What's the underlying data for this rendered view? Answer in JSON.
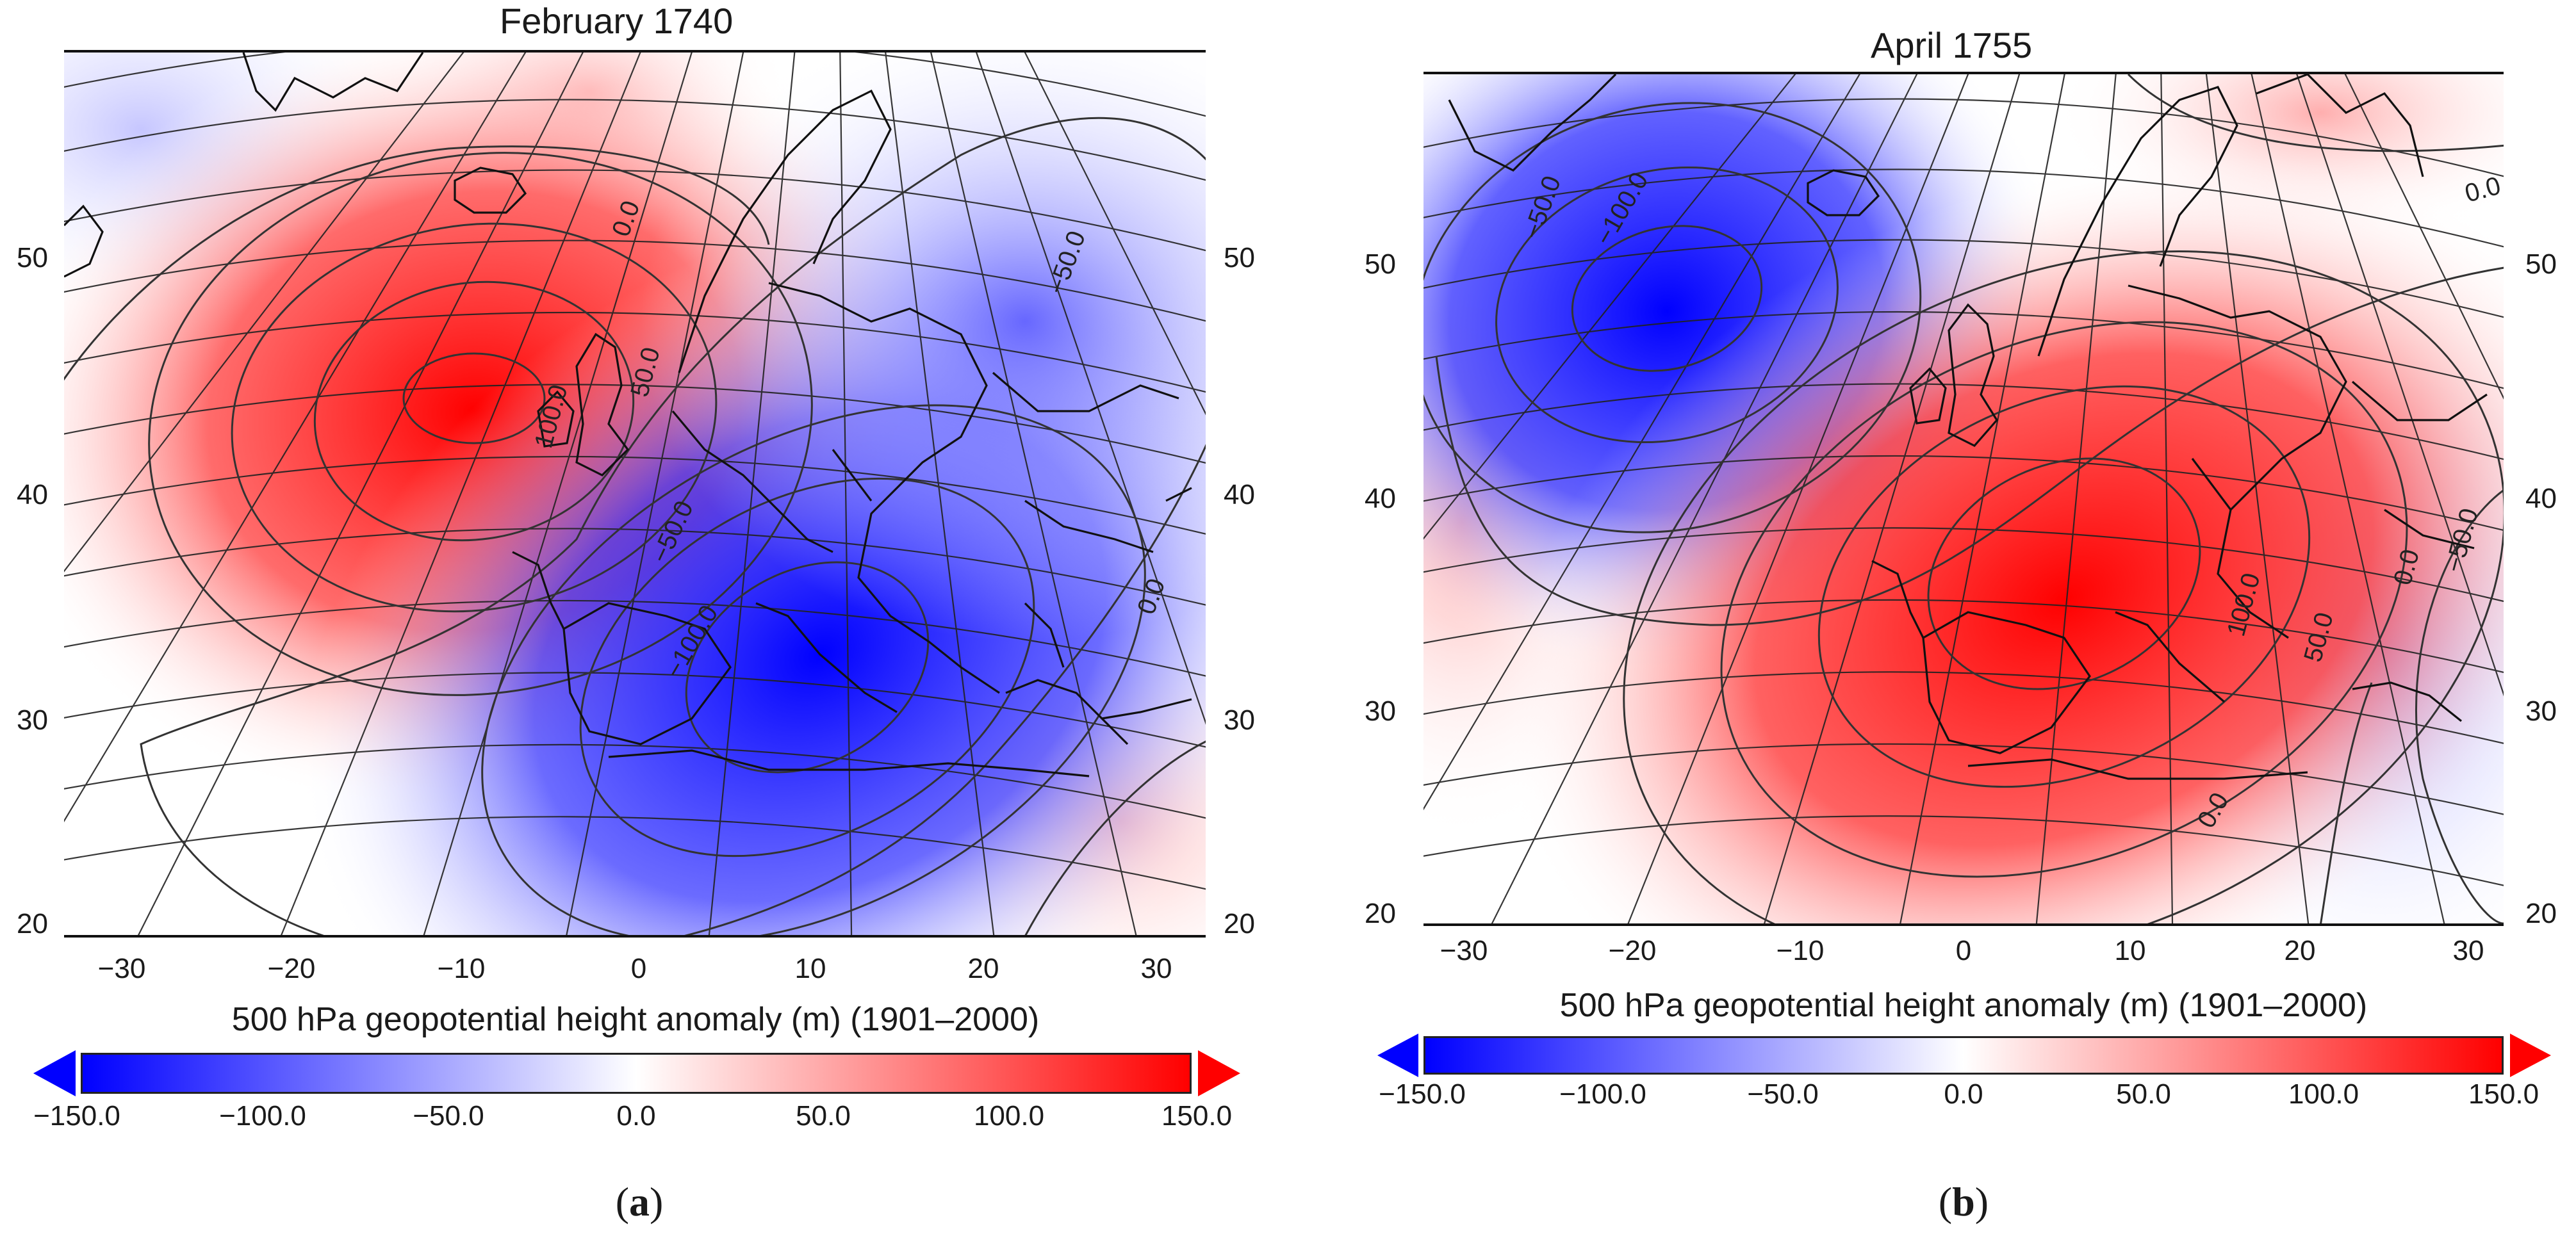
{
  "panels": [
    {
      "id": "a",
      "title": "February 1740",
      "caption_letter": "a",
      "lat_labels": [
        "50",
        "40",
        "30",
        "20"
      ],
      "lon_labels": [
        "−30",
        "−20",
        "−10",
        "0",
        "10",
        "20",
        "30"
      ],
      "contour_labels": [
        "100.0",
        "50.0",
        "0.0",
        "−50.0",
        "−100.0",
        "0.0",
        "−50.0"
      ],
      "anomaly_centers": [
        {
          "type": "high",
          "lon": -9,
          "lat": 45,
          "value": 120
        },
        {
          "type": "low",
          "lon": 10,
          "lat": 33,
          "value": -140
        },
        {
          "type": "low",
          "lon": 22,
          "lat": 48,
          "value": -60
        }
      ],
      "colorbar": {
        "title": "500 hPa geopotential height anomaly (m) (1901–2000)",
        "tick_labels": [
          "−150.0",
          "−100.0",
          "−50.0",
          "0.0",
          "50.0",
          "100.0",
          "150.0"
        ]
      }
    },
    {
      "id": "b",
      "title": "April 1755",
      "caption_letter": "b",
      "lat_labels": [
        "50",
        "40",
        "30",
        "20"
      ],
      "lon_labels": [
        "−30",
        "−20",
        "−10",
        "0",
        "10",
        "20",
        "30"
      ],
      "contour_labels": [
        "−50.0",
        "−100.0",
        "0.0",
        "100.0",
        "50.0",
        "0.0",
        "−50.0",
        "0.0"
      ],
      "anomaly_centers": [
        {
          "type": "low",
          "lon": -13,
          "lat": 47,
          "value": -140
        },
        {
          "type": "high",
          "lon": 7,
          "lat": 37,
          "value": 140
        },
        {
          "type": "high",
          "lon": 25,
          "lat": 58,
          "value": 40
        }
      ],
      "colorbar": {
        "title": "500 hPa geopotential height anomaly (m) (1901–2000)",
        "tick_labels": [
          "−150.0",
          "−100.0",
          "−50.0",
          "0.0",
          "50.0",
          "100.0",
          "150.0"
        ]
      }
    }
  ],
  "colors": {
    "low": "#0000ff",
    "neutral": "#ffffff",
    "high": "#ff0000",
    "lines": "#333333"
  }
}
